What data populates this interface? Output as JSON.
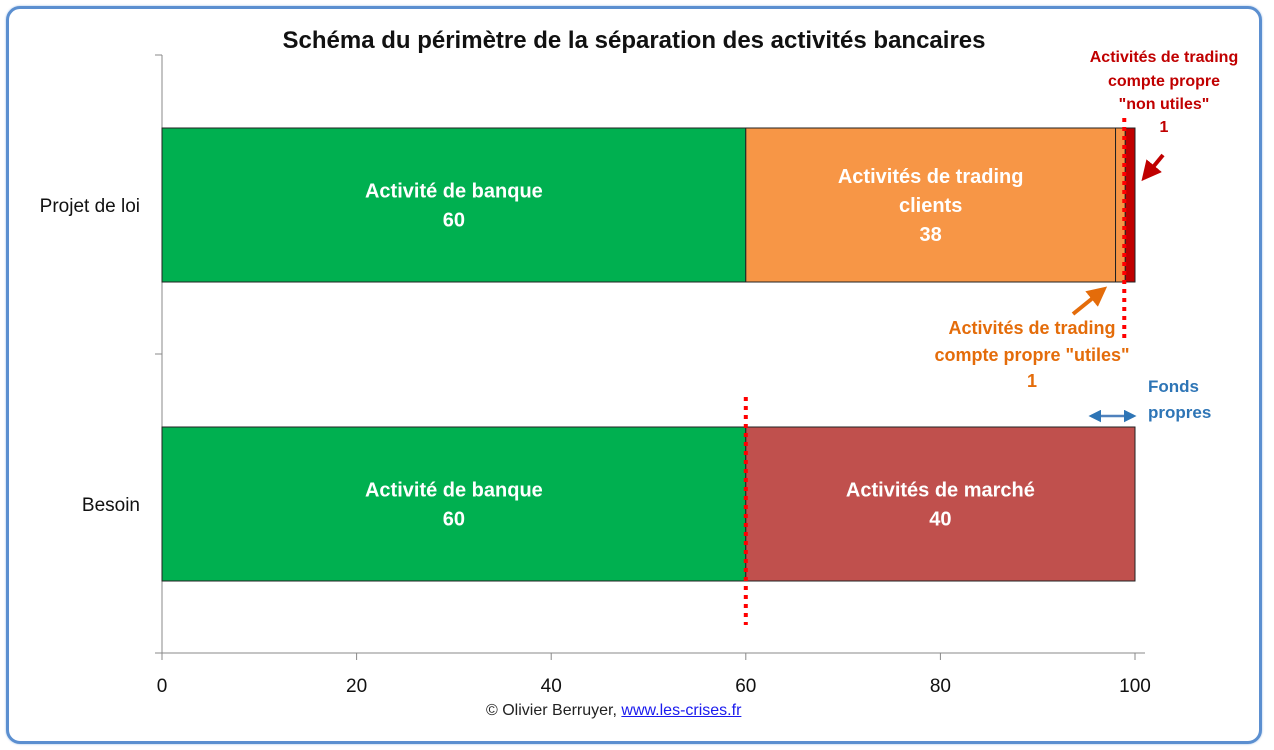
{
  "chart_data": {
    "type": "bar",
    "orientation": "horizontal",
    "stacked": true,
    "title": "Schéma du périmètre de la séparation des activités bancaires",
    "categories": [
      "Projet de loi",
      "Besoin"
    ],
    "xlim": [
      0,
      100
    ],
    "xticks": [
      "0",
      "20",
      "40",
      "60",
      "80",
      "100"
    ],
    "grid": false,
    "segments": [
      {
        "category": "Projet de loi",
        "start": 0,
        "value": 60,
        "color": "#00b050",
        "label": [
          "Activité de banque",
          "60"
        ]
      },
      {
        "category": "Projet de loi",
        "start": 60,
        "value": 38,
        "color": "#f79646",
        "label": [
          "Activités de trading",
          "clients",
          "38"
        ]
      },
      {
        "category": "Projet de loi",
        "start": 98,
        "value": 1,
        "color": "#f79646",
        "label": []
      },
      {
        "category": "Projet de loi",
        "start": 99,
        "value": 1,
        "color": "#c00000",
        "label": []
      },
      {
        "category": "Besoin",
        "start": 0,
        "value": 60,
        "color": "#00b050",
        "label": [
          "Activité de banque",
          "60"
        ]
      },
      {
        "category": "Besoin",
        "start": 60,
        "value": 40,
        "color": "#c0504d",
        "label": [
          "Activités de marché",
          "40"
        ]
      }
    ],
    "annotations": {
      "non_utiles": {
        "lines": [
          "Activités de trading",
          "compte propre",
          "\"non utiles\"",
          "1"
        ],
        "color": "#c00000"
      },
      "utiles": {
        "lines": [
          "Activités de trading",
          "compte propre \"utiles\"",
          "1"
        ],
        "color": "#e46c0a"
      },
      "fonds_propres": {
        "lines": [
          "Fonds",
          "propres"
        ],
        "color": "#2e75b6"
      }
    },
    "reference_lines": [
      {
        "category": "Projet de loi",
        "x": 99,
        "color": "#ff0000",
        "style": "dotted"
      },
      {
        "category": "Besoin",
        "x": 60,
        "color": "#ff0000",
        "style": "dotted"
      }
    ]
  },
  "footer": {
    "copyright": "© Olivier Berruyer,",
    "link": "www.les-crises.fr"
  }
}
